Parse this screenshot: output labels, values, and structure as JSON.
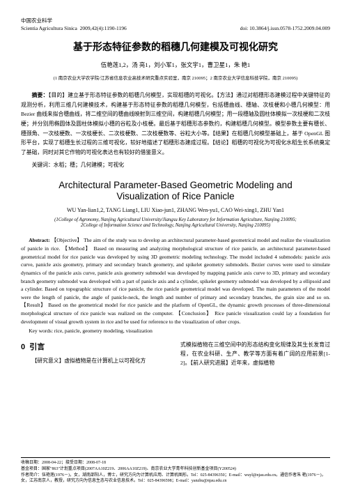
{
  "header": {
    "journal_cn": "中国农业科学",
    "issue": "2009,42(4):1190-1196",
    "journal_en": "Scientia Agricultura Sinica",
    "doi": "doi: 10.3864/j.issn.0578-1752.2009.04.009"
  },
  "title_cn": "基于形态特征参数的稻穗几何建模及可视化研究",
  "authors_cn": "伍艳莲1,2，汤 亮1，刘小军1，张文宇1，曹卫星1，朱 艳1",
  "affil_cn": "(1 南京农业大学农学院/江苏省信息农业高技术研究重点实验室，南京 210095；2 南京农业大学信息科技学院，南京 210095)",
  "abstract_cn_label": "摘要：",
  "abstract_cn": "【目的】建立基于形态特征参数的稻穗几何模型，实现稻穗的可视化。【方法】通过对稻穗形态建模过程中关键特征的观测分析，利用三维几何建模技术，构建基于形态特征参数的稻穗几何模型，包括穗曲线、穗轴、次枝梗和小穗几何模型：用 Bezier 曲线来拟合穗曲线，将二维空间的穗曲线映射到三维空间，构建稻穗几何模型；用一段穗轴及圆柱体模拟一次枝梗和二次枝梗；并分别用椭圆体及圆柱体模拟小穗的谷粒及小枝梗。最后基于稻穗形态参数约，构建稻穗几何模型。模型参数主要有穗长、穗颈角、一次枝梗数、一次枝梗长、二次枝梗数、二次枝梗数等、谷粒大小等。【结果】在稻穗几何模型基础上，基于 OpenGL 图形平台，实现了稻穗生长过程的三维可视化，较好地描述了稻穗形态建成过程。【结论】稻穗的可视化为可视化水稻生长系统奠定了基础，同时对其它作物的可视化表达也有较好的借鉴意义。",
  "keywords_cn_label": "关键词：",
  "keywords_cn": "水稻；穗；几何建模；可视化",
  "title_en_line1": "Architectural Parameter-Based Geometric Modeling and",
  "title_en_line2": "Visualization of Rice Panicle",
  "authors_en": "WU Yan-lian1,2, TANG Liang1, LIU Xiao-jun1, ZHANG Wen-yu1, CAO Wei-xing1, ZHU Yan1",
  "affil_en_1": "(1College of Agronomy, Nanjing Agricultural University/Jiangsu Key Laboratory for Information Agriculture, Nanjing 210095;",
  "affil_en_2": "2College of Information Science and Technology, Nanjing Agricultural University, Nanjing 210095)",
  "abstract_en_label": "Abstract:",
  "abstract_en": " 【Objective】 The aim of the study was to develop an architectural parameter-based geometrical model and realize the visualization of panicle in rice. 【Method】 Based on measuring and analyzing morphological structure of rice panicle, an architectural parameter-based geometrical model for rice panicle was developed by using 3D geometric modeling technology. The model included 4 submodels: panicle axis curve, panicle axis geometry, primary and secondary branch geometry, and spikelet geometry submodels. Bezier curves were used to simulate dynamics of the panicle axis curve, panicle axis geometry submodel was developed by mapping panicle axis curve to 3D, primary and secondary branch geometry submodel was developed with a part of panicle axis and a cylinder, spikelet geometry submodel was developed by a ellipsoid and a cylinder. Based on topographic structure of rice panicle, the rice panicle geometrical model was developed. The main parameters of the model were the length of panicle, the angle of panicle-neck, the length and number of primary and secondary branches, the grain size and so on. 【Result】 Based on the geometrical model for rice panicle and the platform of OpenGL, the dynamic growth processes of three-dimensional morphological structure of rice panicle was realized on the computer. 【Conclusion】 Rice panicle visualization could lay a foundation for development of visual growth system in rice and be used for reference to the visualization of other crops.",
  "keywords_en_label": "Key words:",
  "keywords_en": " rice, panicle, geometry modeling, visualization",
  "section0_num": "0",
  "section0_title": "引言",
  "left_col": "【研究意义】虚拟植物是在计算机上以可视化方",
  "right_col": "式模拟植物在三维空间中的形态结构变化规律及其生长发育过程，在农业科研、生产、教学等方面有着广阔的应用前景[1-2]。【前人研究进展】近年来，虚拟植物",
  "footer": {
    "line1": "收稿日期：2008-04-22；接受日期：2008-07-18",
    "line2": "基金项目：国家\"863\"计划重点项目(2007AA10Z219、2006AA10Z219)、南京农业大学青年科技创新基金项目(Y200524)",
    "line3": "作者简介：伍艳莲(1976－)，女，湖南邵阳人，博士，研究方向为计算机应用、计算机图形。Tel：025-84396350；E-mail：wuyl@njau.edu.cn。通信作者朱 艳(1976－)，女，江苏南京人，教授，研究方向为信息生态与农业信息技术。Tel：025-84396598；E-mail：yanzhu@njau.edu.cn"
  }
}
